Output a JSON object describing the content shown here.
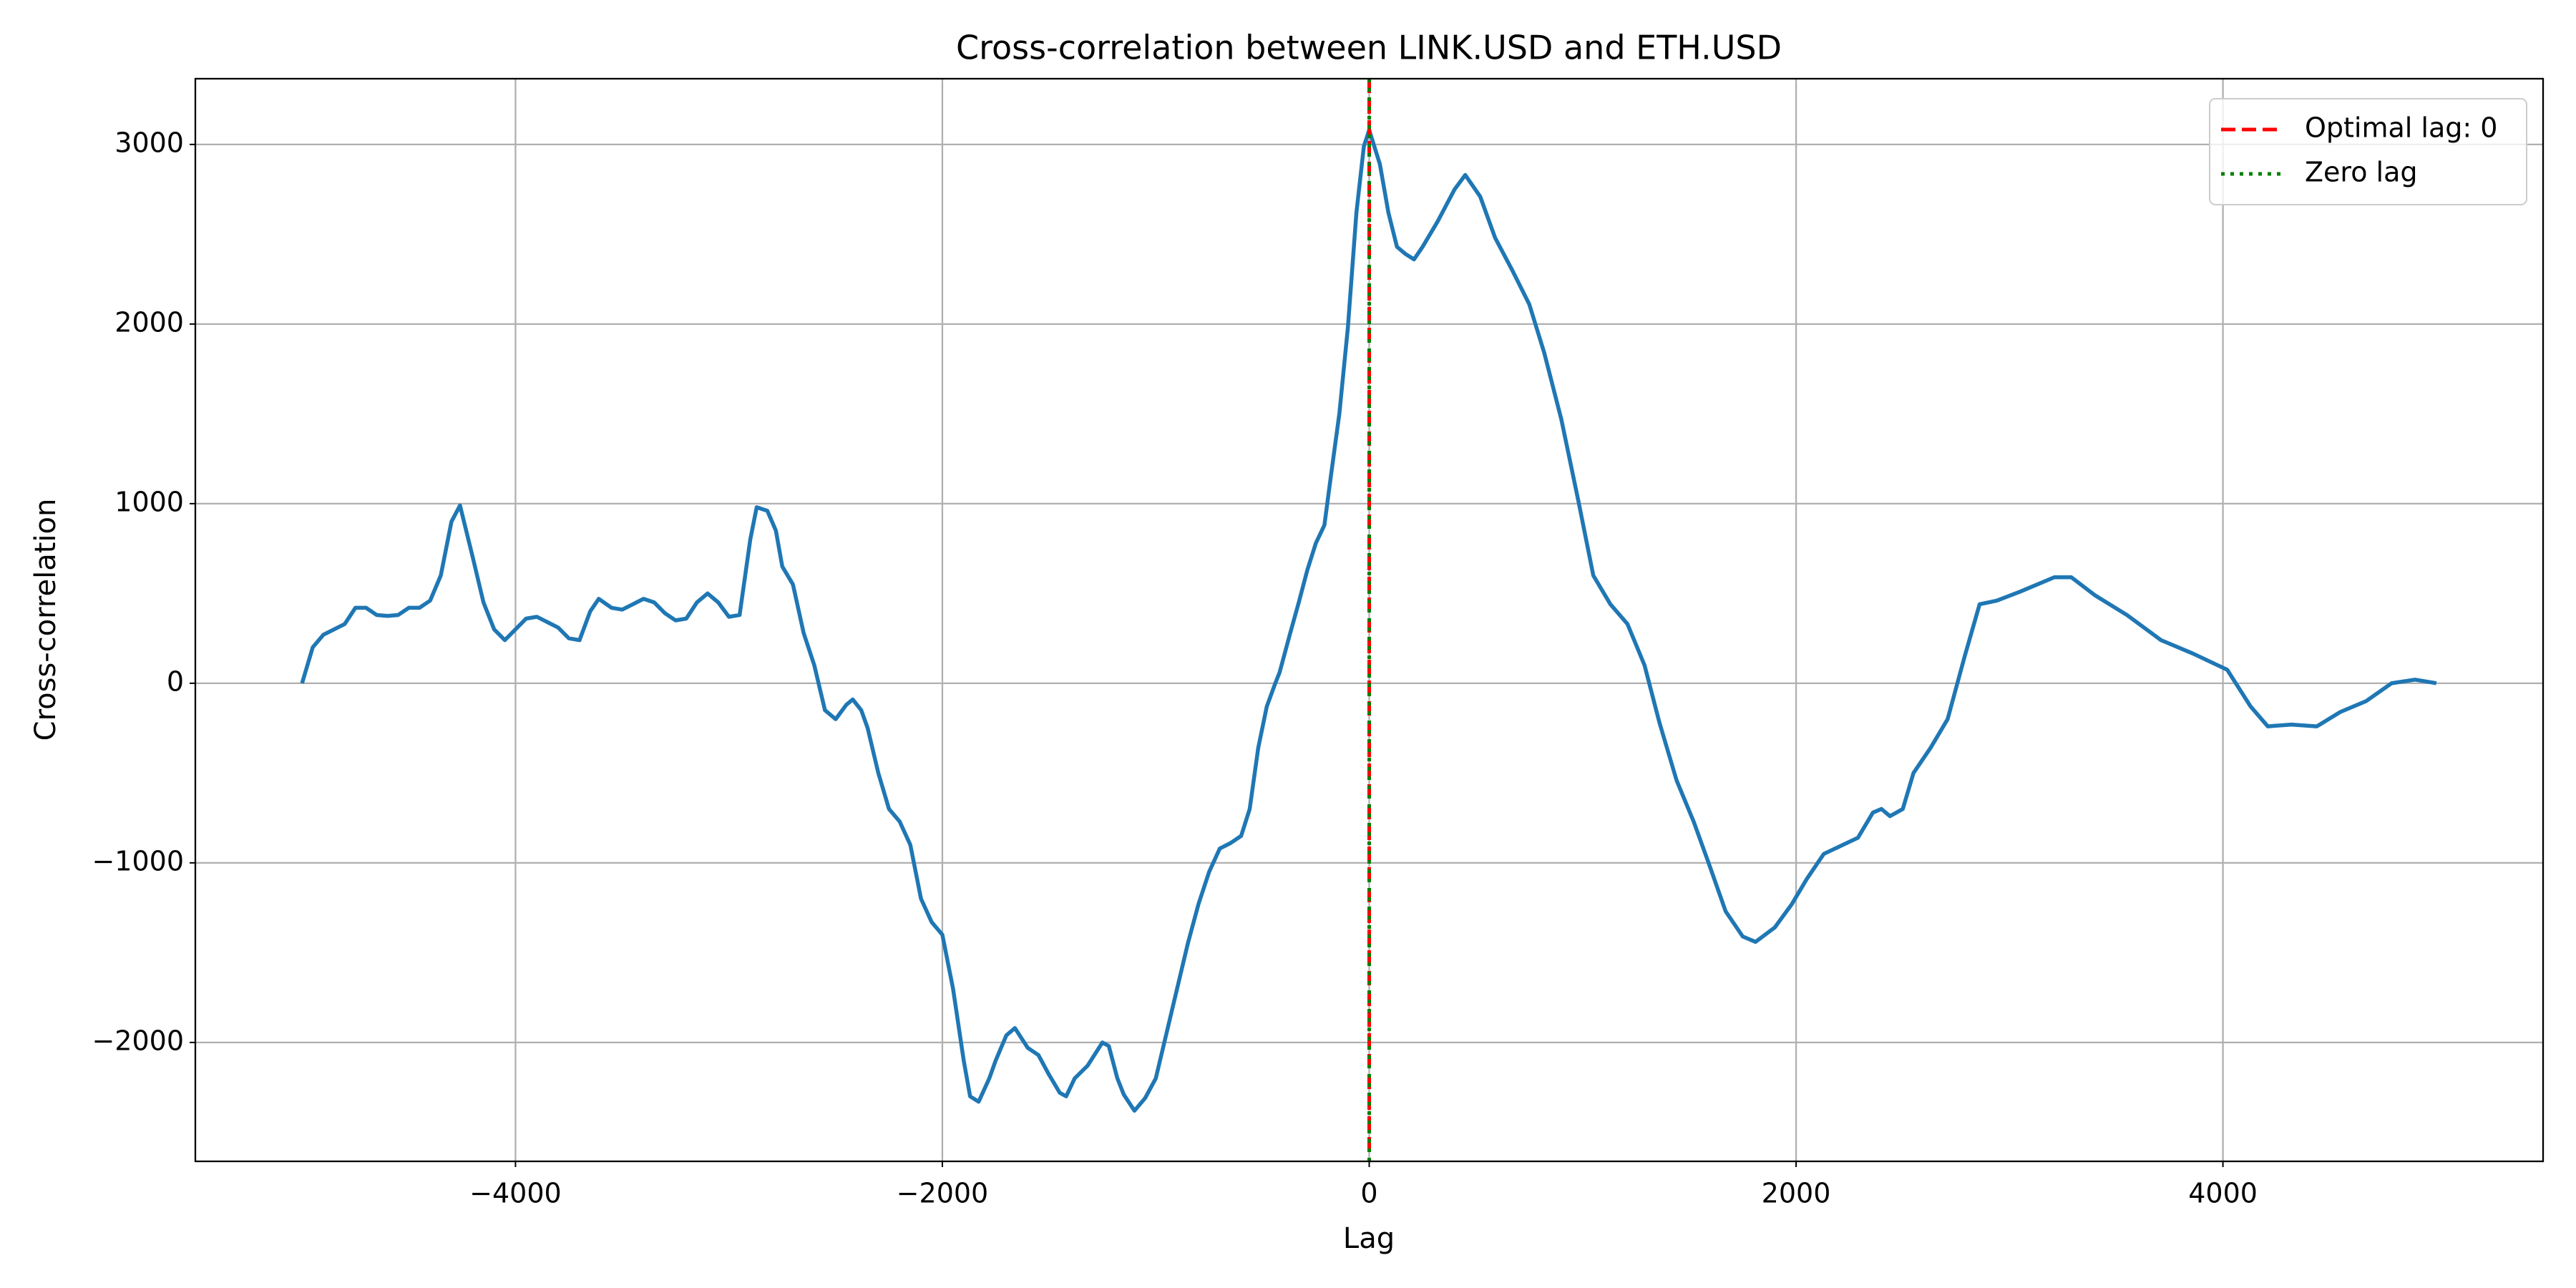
{
  "chart_data": {
    "type": "line",
    "title": "Cross-correlation between LINK.USD and ETH.USD",
    "x_label": "Lag",
    "y_label": "Cross-correlation",
    "color": "#1f77b4",
    "x": [
      -5000,
      -4950,
      -4900,
      -4800,
      -4750,
      -4700,
      -4650,
      -4600,
      -4550,
      -4500,
      -4450,
      -4400,
      -4350,
      -4300,
      -4260,
      -4200,
      -4150,
      -4100,
      -4050,
      -4000,
      -3950,
      -3900,
      -3850,
      -3800,
      -3750,
      -3700,
      -3650,
      -3610,
      -3550,
      -3500,
      -3450,
      -3400,
      -3350,
      -3300,
      -3250,
      -3200,
      -3150,
      -3100,
      -3050,
      -3000,
      -2950,
      -2900,
      -2870,
      -2820,
      -2780,
      -2750,
      -2700,
      -2650,
      -2600,
      -2550,
      -2500,
      -2450,
      -2420,
      -2380,
      -2350,
      -2300,
      -2250,
      -2200,
      -2150,
      -2100,
      -2050,
      -2000,
      -1950,
      -1900,
      -1870,
      -1830,
      -1780,
      -1750,
      -1700,
      -1660,
      -1600,
      -1550,
      -1500,
      -1450,
      -1420,
      -1380,
      -1320,
      -1250,
      -1220,
      -1180,
      -1150,
      -1100,
      -1050,
      -1000,
      -950,
      -900,
      -850,
      -800,
      -750,
      -700,
      -650,
      -600,
      -560,
      -520,
      -480,
      -440,
      -420,
      -370,
      -330,
      -290,
      -250,
      -210,
      -180,
      -140,
      -100,
      -60,
      -25,
      0,
      50,
      90,
      130,
      170,
      210,
      250,
      320,
      400,
      450,
      520,
      590,
      670,
      750,
      820,
      900,
      980,
      1050,
      1130,
      1210,
      1290,
      1360,
      1440,
      1520,
      1590,
      1670,
      1750,
      1810,
      1900,
      1980,
      2050,
      2130,
      2290,
      2360,
      2400,
      2440,
      2500,
      2550,
      2630,
      2710,
      2790,
      2860,
      2940,
      3050,
      3210,
      3290,
      3400,
      3550,
      3710,
      3860,
      4020,
      4130,
      4210,
      4320,
      4440,
      4550,
      4670,
      4790,
      4900,
      5000
    ],
    "values": [
      0,
      200,
      270,
      330,
      420,
      420,
      380,
      375,
      380,
      420,
      420,
      460,
      600,
      900,
      990,
      700,
      450,
      300,
      240,
      300,
      360,
      370,
      340,
      310,
      250,
      240,
      400,
      470,
      420,
      410,
      440,
      470,
      450,
      390,
      350,
      360,
      450,
      500,
      450,
      370,
      380,
      800,
      980,
      960,
      850,
      650,
      550,
      280,
      100,
      -150,
      -200,
      -120,
      -90,
      -150,
      -250,
      -500,
      -700,
      -770,
      -900,
      -1200,
      -1330,
      -1400,
      -1700,
      -2100,
      -2300,
      -2330,
      -2200,
      -2100,
      -1960,
      -1920,
      -2030,
      -2070,
      -2180,
      -2280,
      -2300,
      -2200,
      -2130,
      -2000,
      -2020,
      -2200,
      -2290,
      -2380,
      -2310,
      -2200,
      -1950,
      -1700,
      -1450,
      -1230,
      -1050,
      -920,
      -890,
      -850,
      -700,
      -360,
      -130,
      0,
      60,
      280,
      450,
      630,
      780,
      880,
      1150,
      1500,
      1980,
      2620,
      2990,
      3080,
      2890,
      2620,
      2430,
      2390,
      2360,
      2430,
      2570,
      2750,
      2830,
      2710,
      2480,
      2300,
      2110,
      1840,
      1470,
      1015,
      600,
      440,
      330,
      100,
      -220,
      -540,
      -770,
      -1000,
      -1270,
      -1410,
      -1440,
      -1360,
      -1230,
      -1090,
      -950,
      -860,
      -720,
      -700,
      -740,
      -700,
      -500,
      -360,
      -200,
      150,
      440,
      460,
      510,
      590,
      590,
      490,
      380,
      240,
      165,
      75,
      -130,
      -240,
      -230,
      -240,
      -160,
      -100,
      0,
      20,
      0
    ],
    "ref_lines": [
      {
        "name": "Optimal lag: 0",
        "x": 0,
        "color": "#ff0000",
        "style": "dashed"
      },
      {
        "name": "Zero lag",
        "x": 0,
        "color": "#008000",
        "style": "dotted"
      }
    ],
    "xlim": [
      -5500,
      5500
    ],
    "ylim": [
      -2662,
      3366
    ],
    "xticks": [
      {
        "value": -4000,
        "label": "−4000"
      },
      {
        "value": -2000,
        "label": "−2000"
      },
      0,
      2000,
      4000
    ],
    "yticks": [
      {
        "value": -2000,
        "label": "−2000"
      },
      {
        "value": -1000,
        "label": "−1000"
      },
      0,
      1000,
      2000,
      3000
    ],
    "grid": true,
    "legend": "upper right"
  }
}
